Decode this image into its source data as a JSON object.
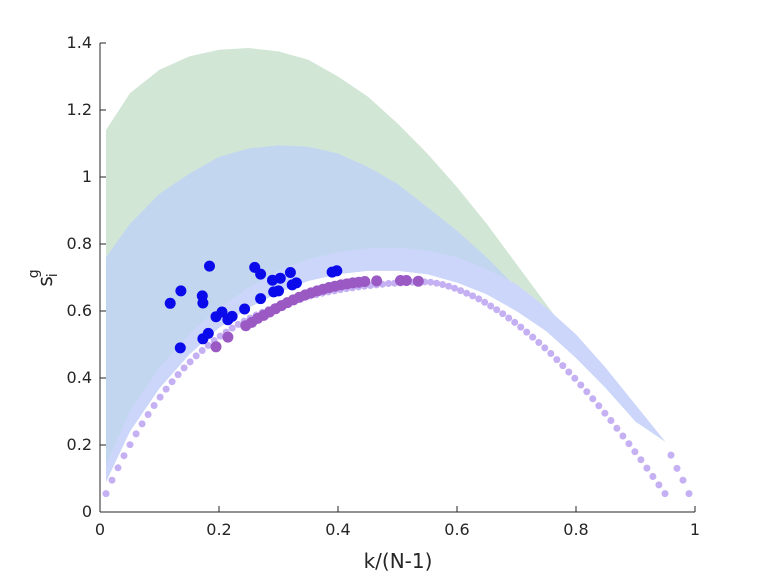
{
  "chart_data": {
    "type": "scatter",
    "xlabel": "k/(N-1)",
    "ylabel": {
      "base": "s",
      "sub": "i",
      "sup": "g"
    },
    "xlim": [
      0,
      1
    ],
    "ylim": [
      0,
      1.4
    ],
    "xticks": [
      0,
      0.2,
      0.4,
      0.6,
      0.8,
      1
    ],
    "xtick_labels": [
      "0",
      "0.2",
      "0.4",
      "0.6",
      "0.8",
      "1"
    ],
    "yticks": [
      0,
      0.2,
      0.4,
      0.6,
      0.8,
      1,
      1.2,
      1.4
    ],
    "ytick_labels": [
      "0",
      "0.2",
      "0.4",
      "0.6",
      "0.8",
      "1",
      "1.2",
      "1.4"
    ],
    "grid": false,
    "bands": [
      {
        "color": "#d2e6d6",
        "description": "outer band",
        "upper": [
          [
            0.01,
            1.14
          ],
          [
            0.05,
            1.25
          ],
          [
            0.1,
            1.32
          ],
          [
            0.15,
            1.36
          ],
          [
            0.2,
            1.38
          ],
          [
            0.25,
            1.385
          ],
          [
            0.3,
            1.375
          ],
          [
            0.35,
            1.35
          ],
          [
            0.4,
            1.3
          ],
          [
            0.45,
            1.24
          ],
          [
            0.5,
            1.16
          ],
          [
            0.55,
            1.07
          ],
          [
            0.6,
            0.97
          ],
          [
            0.65,
            0.86
          ],
          [
            0.7,
            0.74
          ],
          [
            0.75,
            0.62
          ],
          [
            0.8,
            0.5
          ],
          [
            0.85,
            0.39
          ],
          [
            0.9,
            0.29
          ],
          [
            0.95,
            0.21
          ]
        ]
      },
      {
        "color": "#c3d6f0",
        "description": "middle band",
        "upper": [
          [
            0.01,
            0.76
          ],
          [
            0.05,
            0.86
          ],
          [
            0.1,
            0.95
          ],
          [
            0.15,
            1.01
          ],
          [
            0.2,
            1.06
          ],
          [
            0.25,
            1.085
          ],
          [
            0.3,
            1.095
          ],
          [
            0.35,
            1.09
          ],
          [
            0.4,
            1.07
          ],
          [
            0.45,
            1.03
          ],
          [
            0.5,
            0.98
          ],
          [
            0.55,
            0.91
          ],
          [
            0.6,
            0.84
          ],
          [
            0.65,
            0.76
          ],
          [
            0.7,
            0.67
          ],
          [
            0.75,
            0.58
          ],
          [
            0.8,
            0.49
          ],
          [
            0.85,
            0.39
          ],
          [
            0.9,
            0.3
          ],
          [
            0.95,
            0.21
          ]
        ]
      },
      {
        "color": "#ccd6fb",
        "description": "inner band",
        "upper": [
          [
            0.01,
            0.14
          ],
          [
            0.05,
            0.3
          ],
          [
            0.1,
            0.43
          ],
          [
            0.15,
            0.53
          ],
          [
            0.2,
            0.61
          ],
          [
            0.25,
            0.67
          ],
          [
            0.3,
            0.72
          ],
          [
            0.35,
            0.755
          ],
          [
            0.4,
            0.775
          ],
          [
            0.45,
            0.787
          ],
          [
            0.5,
            0.789
          ],
          [
            0.55,
            0.78
          ],
          [
            0.6,
            0.76
          ],
          [
            0.65,
            0.725
          ],
          [
            0.7,
            0.68
          ],
          [
            0.75,
            0.61
          ],
          [
            0.8,
            0.53
          ],
          [
            0.85,
            0.43
          ],
          [
            0.9,
            0.32
          ],
          [
            0.95,
            0.21
          ]
        ]
      }
    ],
    "band_lower": [
      [
        0.01,
        0.09
      ],
      [
        0.05,
        0.24
      ],
      [
        0.1,
        0.37
      ],
      [
        0.15,
        0.47
      ],
      [
        0.2,
        0.55
      ],
      [
        0.25,
        0.61
      ],
      [
        0.3,
        0.655
      ],
      [
        0.35,
        0.69
      ],
      [
        0.4,
        0.71
      ],
      [
        0.45,
        0.72
      ],
      [
        0.5,
        0.72
      ],
      [
        0.55,
        0.71
      ],
      [
        0.6,
        0.685
      ],
      [
        0.65,
        0.65
      ],
      [
        0.7,
        0.6
      ],
      [
        0.75,
        0.54
      ],
      [
        0.8,
        0.46
      ],
      [
        0.85,
        0.37
      ],
      [
        0.9,
        0.27
      ],
      [
        0.95,
        0.21
      ]
    ],
    "series": [
      {
        "color": "#c4b0f2",
        "marker_radius": 3.5,
        "points": [
          [
            0.0101,
            0.055
          ],
          [
            0.0202,
            0.095
          ],
          [
            0.0303,
            0.132
          ],
          [
            0.0404,
            0.168
          ],
          [
            0.0505,
            0.201
          ],
          [
            0.0606,
            0.233
          ],
          [
            0.0707,
            0.263
          ],
          [
            0.0808,
            0.291
          ],
          [
            0.0909,
            0.318
          ],
          [
            0.101,
            0.343
          ],
          [
            0.1111,
            0.367
          ],
          [
            0.1212,
            0.389
          ],
          [
            0.1313,
            0.41
          ],
          [
            0.1414,
            0.43
          ],
          [
            0.1515,
            0.448
          ],
          [
            0.1616,
            0.466
          ],
          [
            0.1717,
            0.482
          ],
          [
            0.1818,
            0.497
          ],
          [
            0.1919,
            0.512
          ],
          [
            0.202,
            0.525
          ],
          [
            0.2121,
            0.537
          ],
          [
            0.2222,
            0.549
          ],
          [
            0.2323,
            0.56
          ],
          [
            0.2424,
            0.57
          ],
          [
            0.2525,
            0.579
          ],
          [
            0.2626,
            0.588
          ],
          [
            0.2727,
            0.596
          ],
          [
            0.2828,
            0.604
          ],
          [
            0.2929,
            0.611
          ],
          [
            0.303,
            0.618
          ],
          [
            0.3131,
            0.624
          ],
          [
            0.3232,
            0.63
          ],
          [
            0.3333,
            0.635
          ],
          [
            0.3434,
            0.64
          ],
          [
            0.3535,
            0.645
          ],
          [
            0.3636,
            0.649
          ],
          [
            0.3737,
            0.653
          ],
          [
            0.3838,
            0.657
          ],
          [
            0.3939,
            0.66
          ],
          [
            0.404,
            0.664
          ],
          [
            0.4141,
            0.667
          ],
          [
            0.4242,
            0.669
          ],
          [
            0.4343,
            0.672
          ],
          [
            0.4444,
            0.674
          ],
          [
            0.4545,
            0.676
          ],
          [
            0.4646,
            0.678
          ],
          [
            0.4747,
            0.68
          ],
          [
            0.4848,
            0.682
          ],
          [
            0.4949,
            0.683
          ],
          [
            0.5051,
            0.684
          ],
          [
            0.5152,
            0.685
          ],
          [
            0.5253,
            0.686
          ],
          [
            0.5354,
            0.687
          ],
          [
            0.5455,
            0.687
          ],
          [
            0.5556,
            0.686
          ],
          [
            0.5657,
            0.683
          ],
          [
            0.5758,
            0.679
          ],
          [
            0.5859,
            0.674
          ],
          [
            0.596,
            0.668
          ],
          [
            0.6061,
            0.661
          ],
          [
            0.6162,
            0.653
          ],
          [
            0.6263,
            0.645
          ],
          [
            0.6364,
            0.636
          ],
          [
            0.6465,
            0.626
          ],
          [
            0.6566,
            0.615
          ],
          [
            0.6667,
            0.604
          ],
          [
            0.6768,
            0.592
          ],
          [
            0.6869,
            0.579
          ],
          [
            0.697,
            0.566
          ],
          [
            0.7071,
            0.552
          ],
          [
            0.7172,
            0.537
          ],
          [
            0.7273,
            0.522
          ],
          [
            0.7374,
            0.506
          ],
          [
            0.7475,
            0.49
          ],
          [
            0.7576,
            0.473
          ],
          [
            0.7677,
            0.455
          ],
          [
            0.7778,
            0.437
          ],
          [
            0.7879,
            0.418
          ],
          [
            0.798,
            0.399
          ],
          [
            0.8081,
            0.379
          ],
          [
            0.8182,
            0.359
          ],
          [
            0.8283,
            0.338
          ],
          [
            0.8384,
            0.317
          ],
          [
            0.8485,
            0.295
          ],
          [
            0.8586,
            0.273
          ],
          [
            0.8687,
            0.25
          ],
          [
            0.8788,
            0.227
          ],
          [
            0.8889,
            0.204
          ],
          [
            0.899,
            0.18
          ],
          [
            0.9091,
            0.156
          ],
          [
            0.9192,
            0.131
          ],
          [
            0.9293,
            0.106
          ],
          [
            0.9394,
            0.081
          ],
          [
            0.9495,
            0.055
          ],
          [
            0.9596,
            0.17
          ],
          [
            0.9697,
            0.13
          ],
          [
            0.9798,
            0.095
          ],
          [
            0.9899,
            0.055
          ]
        ]
      },
      {
        "color": "#9b59c4",
        "marker_radius": 5.5,
        "points": [
          [
            0.195,
            0.493
          ],
          [
            0.215,
            0.522
          ],
          [
            0.245,
            0.556
          ],
          [
            0.255,
            0.566
          ],
          [
            0.265,
            0.578
          ],
          [
            0.275,
            0.587
          ],
          [
            0.285,
            0.597
          ],
          [
            0.295,
            0.607
          ],
          [
            0.305,
            0.616
          ],
          [
            0.315,
            0.625
          ],
          [
            0.325,
            0.633
          ],
          [
            0.335,
            0.641
          ],
          [
            0.345,
            0.648
          ],
          [
            0.355,
            0.654
          ],
          [
            0.365,
            0.66
          ],
          [
            0.375,
            0.665
          ],
          [
            0.385,
            0.67
          ],
          [
            0.395,
            0.674
          ],
          [
            0.405,
            0.678
          ],
          [
            0.415,
            0.681
          ],
          [
            0.425,
            0.684
          ],
          [
            0.435,
            0.686
          ],
          [
            0.445,
            0.688
          ],
          [
            0.465,
            0.69
          ],
          [
            0.505,
            0.691
          ],
          [
            0.515,
            0.691
          ],
          [
            0.535,
            0.689
          ]
        ]
      },
      {
        "color": "#0a0aeb",
        "marker_radius": 5.5,
        "points": [
          [
            0.118,
            0.623
          ],
          [
            0.136,
            0.66
          ],
          [
            0.135,
            0.49
          ],
          [
            0.172,
            0.645
          ],
          [
            0.173,
            0.624
          ],
          [
            0.173,
            0.517
          ],
          [
            0.182,
            0.533
          ],
          [
            0.184,
            0.734
          ],
          [
            0.195,
            0.583
          ],
          [
            0.205,
            0.597
          ],
          [
            0.215,
            0.574
          ],
          [
            0.222,
            0.584
          ],
          [
            0.243,
            0.606
          ],
          [
            0.26,
            0.73
          ],
          [
            0.27,
            0.71
          ],
          [
            0.27,
            0.637
          ],
          [
            0.29,
            0.692
          ],
          [
            0.292,
            0.657
          ],
          [
            0.303,
            0.698
          ],
          [
            0.3,
            0.66
          ],
          [
            0.32,
            0.715
          ],
          [
            0.323,
            0.678
          ],
          [
            0.33,
            0.684
          ],
          [
            0.39,
            0.716
          ],
          [
            0.398,
            0.72
          ]
        ]
      }
    ]
  }
}
